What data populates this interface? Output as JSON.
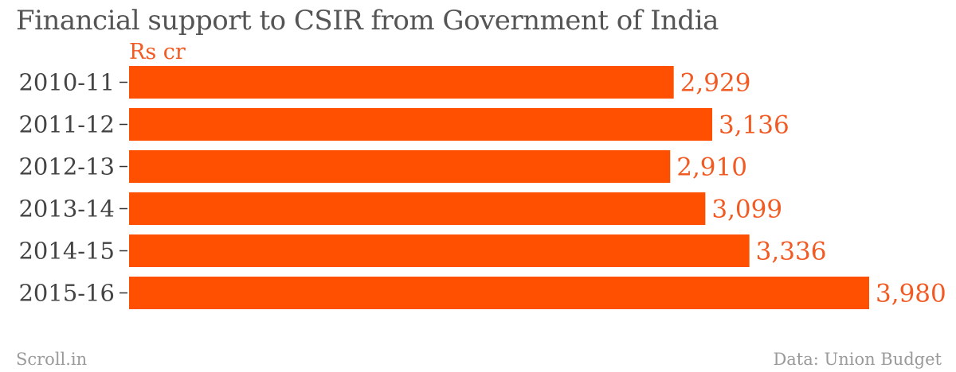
{
  "header": {
    "title": "Financial support to CSIR from Government of India",
    "unit": "Rs cr"
  },
  "footer": {
    "credit": "Scroll.in",
    "source": "Data: Union Budget"
  },
  "colors": {
    "bar": "#fe5000",
    "value_label": "#f15a22",
    "category_label": "#444444",
    "tick": "#333333"
  },
  "chart_data": {
    "type": "bar",
    "orientation": "horizontal",
    "categories": [
      "2010-11",
      "2011-12",
      "2012-13",
      "2013-14",
      "2014-15",
      "2015-16"
    ],
    "values": [
      2929,
      3136,
      2910,
      3099,
      3336,
      3980
    ],
    "value_labels": [
      "2,929",
      "3,136",
      "2,910",
      "3,099",
      "3,336",
      "3,980"
    ],
    "title": "Financial support to CSIR from Government of India",
    "xlabel": "",
    "ylabel": "",
    "unit": "Rs cr",
    "xlim": [
      0,
      3980
    ],
    "grid": false,
    "legend": "none"
  }
}
